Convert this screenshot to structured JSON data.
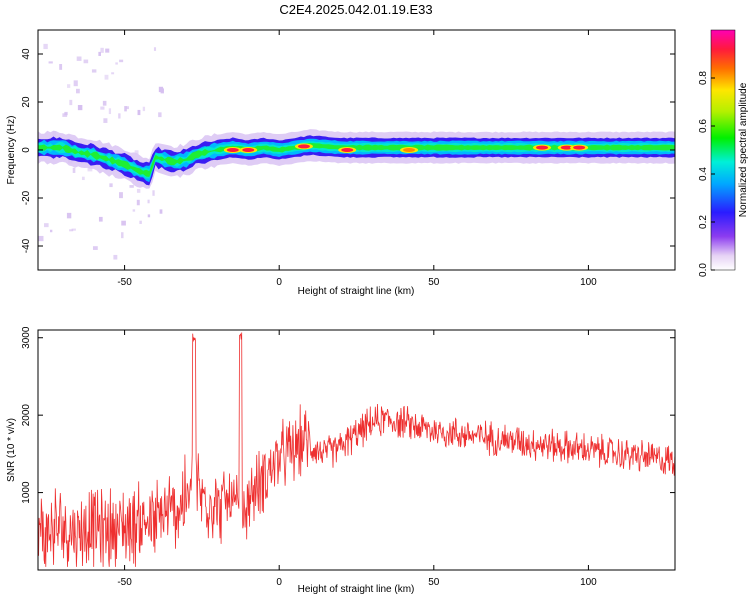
{
  "chart_data": [
    {
      "type": "heatmap",
      "title": "C2E4.2025.042.01.19.E33",
      "xlabel": "Height of straight line (km)",
      "ylabel": "Frequency (Hz)",
      "xlim": [
        -78,
        128
      ],
      "ylim": [
        -50,
        50
      ],
      "xticks": [
        -50,
        0,
        50,
        100
      ],
      "yticks": [
        -40,
        -20,
        0,
        20,
        40
      ],
      "grid": false,
      "colorbar": {
        "label": "Normalized spectral amplitude",
        "range": [
          0,
          1
        ],
        "ticks": [
          "0.0",
          "0.2",
          "0.4",
          "0.6",
          "0.8"
        ]
      },
      "ridge": {
        "x": [
          -78,
          -70,
          -65,
          -60,
          -55,
          -50,
          -45,
          -42,
          -40,
          -37,
          -34,
          -30,
          -27,
          -24,
          -20,
          -15,
          -10,
          -5,
          0,
          5,
          10,
          20,
          30,
          50,
          75,
          100,
          128
        ],
        "y": [
          1,
          1,
          -1,
          -2,
          -4,
          -6,
          -9,
          -10,
          -3,
          -4,
          -5,
          -4,
          -2,
          -1,
          0,
          1,
          0,
          1,
          0,
          1,
          2,
          1,
          1,
          1,
          1,
          1,
          1
        ]
      },
      "hot_spots": [
        {
          "x": -15,
          "y": 0,
          "level": 1.0
        },
        {
          "x": -10,
          "y": 0,
          "level": 1.0
        },
        {
          "x": 8,
          "y": 1.5,
          "level": 1.0
        },
        {
          "x": 22,
          "y": 0,
          "level": 0.95
        },
        {
          "x": 42,
          "y": 0,
          "level": 0.8
        },
        {
          "x": 85,
          "y": 1,
          "level": 0.95
        },
        {
          "x": 93,
          "y": 1,
          "level": 1.0
        },
        {
          "x": 97,
          "y": 1,
          "level": 1.0
        }
      ]
    },
    {
      "type": "line",
      "xlabel": "Height of straight line (km)",
      "ylabel": "SNR (10 * v/v)",
      "xlim": [
        -78,
        128
      ],
      "ylim": [
        0,
        3100
      ],
      "xticks": [
        -50,
        0,
        50,
        100
      ],
      "yticks": [
        1000,
        2000,
        3000
      ],
      "grid": false,
      "color": "#ee2f2f",
      "series": [
        {
          "x": [
            -78,
            -70,
            -65,
            -60,
            -55,
            -50,
            -45,
            -40,
            -37,
            -35,
            -30,
            -27,
            -25,
            -22,
            -20,
            -17,
            -15,
            -12,
            -10,
            -5,
            0,
            5,
            8,
            10,
            15,
            20,
            25,
            30,
            35,
            40,
            50,
            60,
            70,
            80,
            90,
            100,
            110,
            120,
            128
          ],
          "y": [
            450,
            550,
            500,
            550,
            520,
            580,
            620,
            600,
            700,
            750,
            900,
            1100,
            950,
            900,
            800,
            900,
            850,
            700,
            900,
            1200,
            1450,
            1550,
            1700,
            1600,
            1500,
            1600,
            1750,
            1900,
            1950,
            1900,
            1800,
            1750,
            1700,
            1650,
            1600,
            1550,
            1500,
            1450,
            1400
          ]
        }
      ]
    }
  ]
}
